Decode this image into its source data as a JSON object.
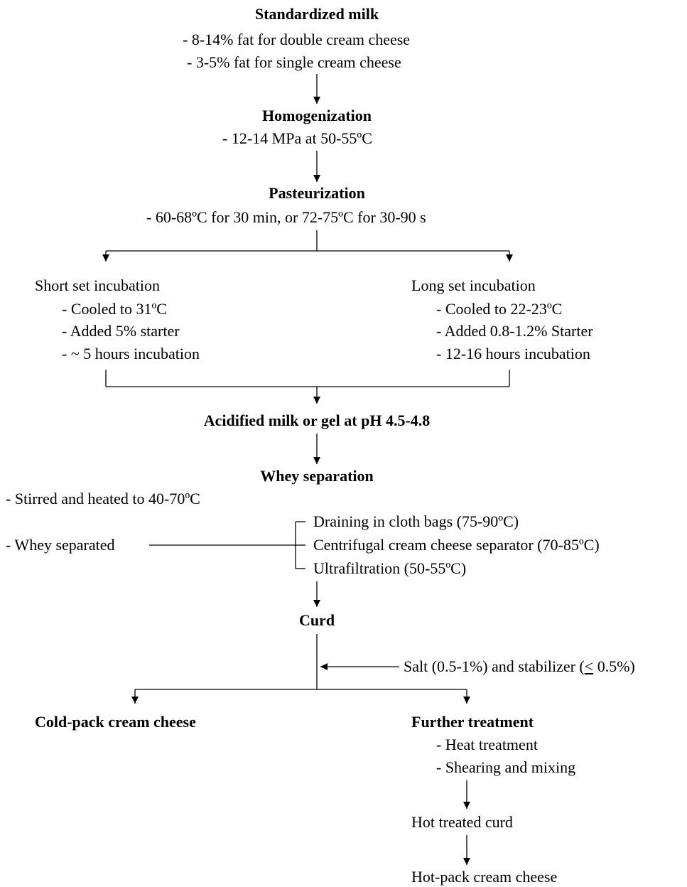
{
  "standardized": {
    "title": "Standardized milk",
    "line1": "- 8-14% fat for double cream cheese",
    "line2": "- 3-5% fat for single cream cheese"
  },
  "homogenization": {
    "title": "Homogenization",
    "line1": "- 12-14 MPa at 50-55ºC"
  },
  "pasteurization": {
    "title": "Pasteurization",
    "line1": "- 60-68ºC for 30 min, or 72-75ºC for 30-90 s"
  },
  "short_set": {
    "title": "Short set incubation",
    "line1": "- Cooled to 31ºC",
    "line2": "- Added 5% starter",
    "line3": "- ~ 5 hours incubation"
  },
  "long_set": {
    "title": "Long set incubation",
    "line1": "- Cooled to 22-23ºC",
    "line2": "- Added 0.8-1.2% Starter",
    "line3": "- 12-16 hours incubation"
  },
  "acidified": {
    "title": "Acidified milk or gel at pH 4.5-4.8"
  },
  "whey": {
    "title": "Whey separation",
    "stirred": "- Stirred and heated to 40-70ºC",
    "separated": "- Whey separated",
    "option1": "Draining in cloth bags (75-90ºC)",
    "option2": "Centrifugal cream cheese separator (70-85ºC)",
    "option3": "Ultrafiltration (50-55ºC)"
  },
  "curd": {
    "title": "Curd",
    "additive_prefix": "Salt (0.5-1%) and stabilizer (",
    "additive_le": "<",
    "additive_suffix": " 0.5%)"
  },
  "cold_pack": {
    "title": "Cold-pack cream cheese"
  },
  "further": {
    "title": "Further treatment",
    "line1": "- Heat treatment",
    "line2": "- Shearing and mixing"
  },
  "hot_treated": {
    "title": "Hot treated curd"
  },
  "hot_pack": {
    "title": "Hot-pack cream cheese"
  }
}
